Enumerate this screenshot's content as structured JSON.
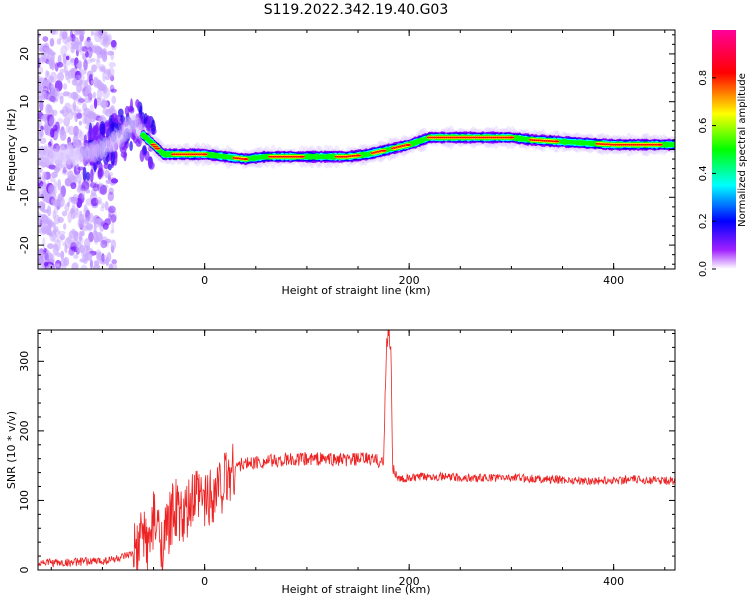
{
  "title": "S119.2022.342.19.40.G03",
  "chart_data": [
    {
      "type": "heatmap",
      "xlabel": "Height of straight line (km)",
      "ylabel": "Frequency (Hz)",
      "xlim": [
        -163,
        460
      ],
      "ylim": [
        -25,
        25
      ],
      "x_ticks": [
        0,
        200,
        400
      ],
      "y_ticks": [
        -20,
        -10,
        0,
        10,
        20
      ],
      "colorbar": {
        "label": "Normalized spectral amplitude",
        "range": [
          0,
          1
        ],
        "ticks": [
          "0.0",
          "0.2",
          "0.4",
          "0.6",
          "0.8"
        ],
        "colors": [
          "#ffffff",
          "#8800ff",
          "#0000ff",
          "#00ffff",
          "#00ff00",
          "#ffff00",
          "#ff0000",
          "#ff00aa"
        ]
      },
      "frequency_trace": {
        "x": [
          -160,
          -140,
          -120,
          -100,
          -80,
          -70,
          -60,
          -50,
          -40,
          0,
          40,
          60,
          80,
          100,
          140,
          160,
          180,
          200,
          220,
          240,
          280,
          300,
          320,
          360,
          400,
          460
        ],
        "y": [
          -1,
          -1.5,
          -1,
          0,
          3,
          6,
          3,
          1,
          -1,
          -1,
          -2,
          -1.5,
          -1.5,
          -1.5,
          -1.5,
          -1,
          0,
          1,
          2.5,
          2.5,
          2.5,
          2.5,
          2,
          1.5,
          1,
          1
        ]
      },
      "grid": false
    },
    {
      "type": "line",
      "xlabel": "Height of straight line (km)",
      "ylabel": "SNR (10 * v/v)",
      "xlim": [
        -163,
        460
      ],
      "ylim": [
        0,
        345
      ],
      "x_ticks": [
        0,
        200,
        400
      ],
      "y_ticks": [
        0,
        100,
        200,
        300
      ],
      "series": [
        {
          "color": "#ee2222",
          "x": [
            -163,
            -140,
            -120,
            -100,
            -80,
            -65,
            -60,
            -55,
            -50,
            -40,
            -30,
            -20,
            -10,
            0,
            10,
            20,
            30,
            50,
            80,
            110,
            140,
            160,
            175,
            178,
            180,
            182,
            184,
            190,
            220,
            260,
            300,
            340,
            380,
            420,
            460
          ],
          "values": [
            12,
            10,
            12,
            13,
            18,
            25,
            60,
            30,
            70,
            40,
            90,
            70,
            105,
            100,
            115,
            130,
            150,
            155,
            158,
            160,
            158,
            160,
            155,
            330,
            345,
            320,
            145,
            130,
            135,
            132,
            133,
            130,
            128,
            130,
            128
          ]
        }
      ],
      "grid": false
    }
  ]
}
